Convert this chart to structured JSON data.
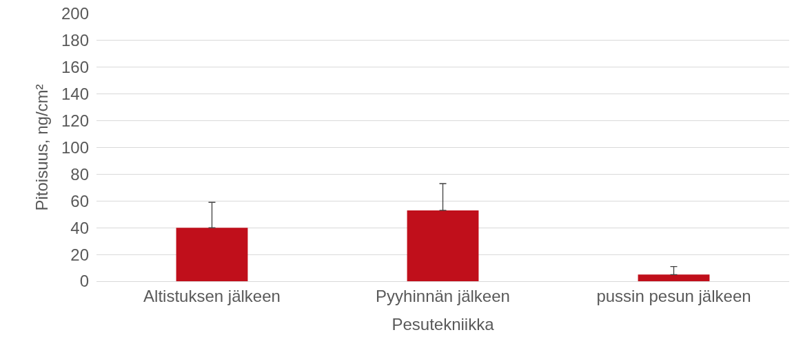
{
  "chart_data": {
    "type": "bar",
    "xlabel": "Pesutekniikka",
    "ylabel": "Pitoisuus, ng/cm²",
    "categories": [
      "Altistuksen jälkeen",
      "Pyyhinnän jälkeen",
      "pussin pesun jälkeen"
    ],
    "values": [
      40,
      53,
      5
    ],
    "errors": [
      [
        40,
        59
      ],
      [
        53,
        73
      ],
      [
        5,
        11
      ]
    ],
    "color": "#c00f1b",
    "ylim": [
      0,
      200
    ],
    "yticks": [
      0,
      20,
      40,
      60,
      80,
      100,
      120,
      140,
      160,
      180,
      200
    ],
    "grid": "y"
  }
}
